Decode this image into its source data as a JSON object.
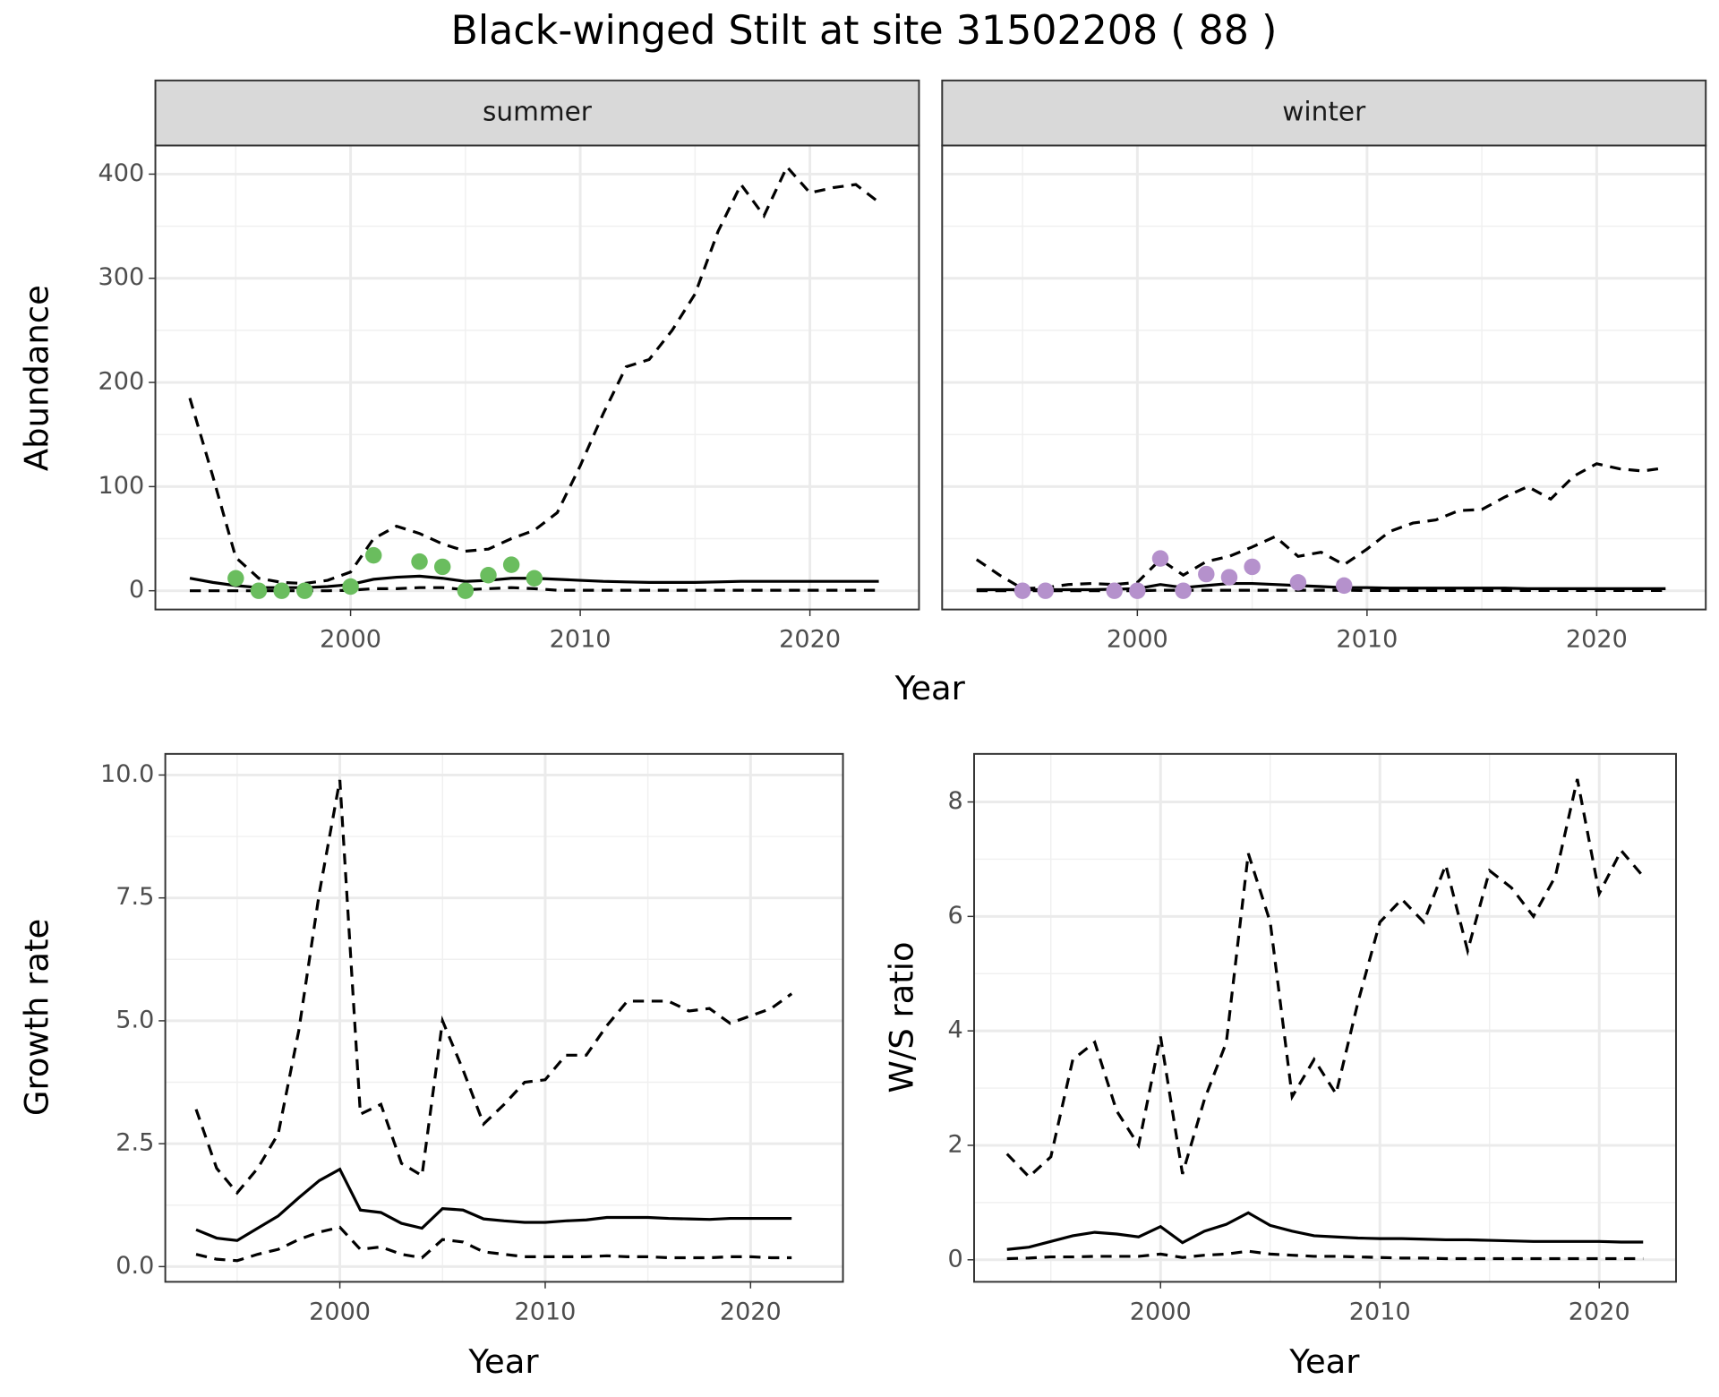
{
  "title": "Black-winged Stilt at site 31502208 ( 88 )",
  "chart_data": [
    {
      "type": "line",
      "title": "summer",
      "xlabel": "Year",
      "ylabel": "Abundance",
      "grid": true,
      "x": [
        1993,
        1994,
        1995,
        1996,
        1997,
        1998,
        1999,
        2000,
        2001,
        2002,
        2003,
        2004,
        2005,
        2006,
        2007,
        2008,
        2009,
        2010,
        2011,
        2012,
        2013,
        2014,
        2015,
        2016,
        2017,
        2018,
        2019,
        2020,
        2021,
        2022,
        2023
      ],
      "xlim": [
        1991.5,
        2024.75
      ],
      "xticks": [
        2000,
        2010,
        2020
      ],
      "xminor_ticks": [
        1995,
        2005,
        2015
      ],
      "ylim": [
        -18,
        427.5
      ],
      "yticks": [
        0,
        100,
        200,
        300,
        400
      ],
      "yminor_ticks": [
        50,
        150,
        250,
        350
      ],
      "series": [
        {
          "style": "dashed",
          "color": "#000000",
          "values": [
            185,
            110,
            32,
            12,
            8,
            7,
            10,
            18,
            50,
            62,
            55,
            45,
            38,
            40,
            50,
            58,
            75,
            120,
            170,
            215,
            222,
            250,
            285,
            345,
            390,
            360,
            407,
            382,
            387,
            390,
            373
          ]
        },
        {
          "style": "solid",
          "color": "#000000",
          "values": [
            12,
            8,
            5,
            3,
            3,
            3,
            4,
            6,
            11,
            13,
            14,
            12,
            9,
            10,
            12,
            12,
            11,
            10,
            9,
            8.5,
            8,
            8,
            8,
            8.5,
            9,
            9,
            9,
            9,
            9,
            9,
            9
          ]
        },
        {
          "style": "dashed",
          "color": "#000000",
          "values": [
            0,
            0,
            0,
            0,
            0,
            0,
            0,
            0.5,
            2,
            2,
            3,
            3,
            1,
            2,
            3,
            2,
            0.5,
            0.5,
            0.5,
            0.5,
            0.5,
            0.5,
            0.5,
            0.5,
            0.5,
            0.5,
            0.5,
            0.5,
            0.5,
            0.5,
            0.5
          ]
        },
        {
          "type": "scatter",
          "color": "#6abd5e",
          "values": [
            null,
            null,
            12,
            0,
            0,
            0,
            null,
            4,
            34,
            null,
            28,
            23,
            0,
            15,
            25,
            12,
            null,
            null,
            null,
            null,
            null,
            null,
            null,
            null,
            null,
            null,
            null,
            null,
            null,
            null,
            null
          ]
        }
      ]
    },
    {
      "type": "line",
      "title": "winter",
      "grid": true,
      "show_ytick_labels": false,
      "x": [
        1993,
        1994,
        1995,
        1996,
        1997,
        1998,
        1999,
        2000,
        2001,
        2002,
        2003,
        2004,
        2005,
        2006,
        2007,
        2008,
        2009,
        2010,
        2011,
        2012,
        2013,
        2014,
        2015,
        2016,
        2017,
        2018,
        2019,
        2020,
        2021,
        2022,
        2023
      ],
      "xlim": [
        1991.5,
        2024.75
      ],
      "xticks": [
        2000,
        2010,
        2020
      ],
      "xminor_ticks": [
        1995,
        2005,
        2015
      ],
      "ylim": [
        -18,
        427.5
      ],
      "yticks": [
        0,
        100,
        200,
        300,
        400
      ],
      "yminor_ticks": [
        50,
        150,
        250,
        350
      ],
      "series": [
        {
          "style": "dashed",
          "color": "#000000",
          "values": [
            30,
            15,
            2,
            3,
            6,
            7,
            6,
            8,
            30,
            15,
            28,
            33,
            42,
            52,
            33,
            37,
            25,
            40,
            57,
            65,
            68,
            77,
            78,
            90,
            100,
            88,
            110,
            122,
            117,
            115,
            118
          ]
        },
        {
          "style": "solid",
          "color": "#000000",
          "values": [
            1,
            1,
            1,
            1,
            1,
            1,
            1.5,
            2,
            6,
            3,
            5,
            7,
            7,
            6,
            5,
            4,
            3,
            3,
            2.5,
            2.5,
            2.5,
            2.5,
            2.5,
            2.5,
            2,
            2,
            2,
            2,
            2,
            2,
            2
          ]
        },
        {
          "style": "dashed",
          "color": "#000000",
          "values": [
            0,
            0,
            0,
            0,
            0,
            0,
            0,
            0,
            0.5,
            0.5,
            0.5,
            0.5,
            0.5,
            0.5,
            0.5,
            0.5,
            0.5,
            0.2,
            0.2,
            0.2,
            0.2,
            0.2,
            0.2,
            0.2,
            0.2,
            0.2,
            0.2,
            0.2,
            0.2,
            0.2,
            0.2
          ]
        },
        {
          "type": "scatter",
          "color": "#b591cc",
          "values": [
            null,
            null,
            0,
            0,
            null,
            null,
            0,
            0,
            31,
            0,
            16,
            13,
            23,
            null,
            8,
            null,
            5,
            null,
            null,
            null,
            null,
            null,
            null,
            null,
            null,
            null,
            null,
            null,
            null,
            null,
            null
          ]
        }
      ]
    },
    {
      "type": "line",
      "xlabel": "Year",
      "ylabel": "Growth rate",
      "grid": true,
      "x": [
        1993,
        1994,
        1995,
        1996,
        1997,
        1998,
        1999,
        2000,
        2001,
        2002,
        2003,
        2004,
        2005,
        2006,
        2007,
        2008,
        2009,
        2010,
        2011,
        2012,
        2013,
        2014,
        2015,
        2016,
        2017,
        2018,
        2019,
        2020,
        2021,
        2022
      ],
      "xlim": [
        1991.5,
        2024.5
      ],
      "xticks": [
        2000,
        2010,
        2020
      ],
      "xminor_ticks": [
        1995,
        2005,
        2015
      ],
      "ylim": [
        -0.31,
        10.43
      ],
      "yticks": [
        {
          "value": 0,
          "label": "0.0"
        },
        {
          "value": 2.5,
          "label": "2.5"
        },
        {
          "value": 5,
          "label": "5.0"
        },
        {
          "value": 7.5,
          "label": "7.5"
        },
        {
          "value": 10,
          "label": "10.0"
        }
      ],
      "yminor_ticks": [
        1.25,
        3.75,
        6.25,
        8.75
      ],
      "series": [
        {
          "style": "dashed",
          "color": "#000000",
          "values": [
            3.2,
            2.0,
            1.5,
            2.0,
            2.7,
            4.8,
            7.6,
            9.9,
            3.1,
            3.3,
            2.1,
            1.85,
            5.0,
            4.0,
            2.9,
            3.3,
            3.75,
            3.8,
            4.3,
            4.3,
            4.9,
            5.4,
            5.4,
            5.4,
            5.2,
            5.25,
            4.95,
            5.1,
            5.25,
            5.55
          ]
        },
        {
          "style": "solid",
          "color": "#000000",
          "values": [
            0.75,
            0.58,
            0.53,
            0.78,
            1.03,
            1.4,
            1.75,
            1.98,
            1.15,
            1.1,
            0.88,
            0.78,
            1.18,
            1.15,
            0.97,
            0.93,
            0.9,
            0.9,
            0.93,
            0.95,
            1.0,
            1.0,
            1.0,
            0.98,
            0.97,
            0.96,
            0.98,
            0.98,
            0.98,
            0.98
          ]
        },
        {
          "style": "dashed",
          "color": "#000000",
          "values": [
            0.25,
            0.15,
            0.12,
            0.25,
            0.35,
            0.55,
            0.7,
            0.8,
            0.35,
            0.4,
            0.25,
            0.18,
            0.55,
            0.5,
            0.3,
            0.25,
            0.2,
            0.2,
            0.2,
            0.2,
            0.22,
            0.2,
            0.2,
            0.18,
            0.18,
            0.18,
            0.2,
            0.2,
            0.18,
            0.18
          ]
        }
      ]
    },
    {
      "type": "line",
      "xlabel": "Year",
      "ylabel": "W/S ratio",
      "grid": true,
      "x": [
        1993,
        1994,
        1995,
        1996,
        1997,
        1998,
        1999,
        2000,
        2001,
        2002,
        2003,
        2004,
        2005,
        2006,
        2007,
        2008,
        2009,
        2010,
        2011,
        2012,
        2013,
        2014,
        2015,
        2016,
        2017,
        2018,
        2019,
        2020,
        2021,
        2022
      ],
      "xlim": [
        1991.5,
        2023.5
      ],
      "xticks": [
        2000,
        2010,
        2020
      ],
      "xminor_ticks": [
        1995,
        2005,
        2015
      ],
      "ylim": [
        -0.385,
        8.84
      ],
      "yticks": [
        0,
        2,
        4,
        6,
        8
      ],
      "yminor_ticks": [
        1,
        3,
        5,
        7
      ],
      "series": [
        {
          "style": "dashed",
          "color": "#000000",
          "values": [
            1.85,
            1.45,
            1.8,
            3.5,
            3.8,
            2.6,
            2.0,
            3.9,
            1.5,
            2.8,
            3.8,
            7.1,
            5.9,
            2.85,
            3.5,
            2.9,
            4.5,
            5.9,
            6.3,
            5.9,
            6.9,
            5.4,
            6.8,
            6.5,
            6.0,
            6.7,
            8.4,
            6.4,
            7.15,
            6.7
          ]
        },
        {
          "style": "solid",
          "color": "#000000",
          "values": [
            0.18,
            0.22,
            0.32,
            0.42,
            0.48,
            0.45,
            0.4,
            0.58,
            0.3,
            0.5,
            0.62,
            0.82,
            0.6,
            0.5,
            0.42,
            0.4,
            0.38,
            0.37,
            0.37,
            0.36,
            0.35,
            0.35,
            0.34,
            0.33,
            0.32,
            0.32,
            0.32,
            0.32,
            0.31,
            0.31
          ]
        },
        {
          "style": "dashed",
          "color": "#000000",
          "values": [
            0.02,
            0.03,
            0.05,
            0.05,
            0.06,
            0.06,
            0.06,
            0.1,
            0.04,
            0.08,
            0.1,
            0.15,
            0.1,
            0.08,
            0.06,
            0.06,
            0.05,
            0.04,
            0.03,
            0.03,
            0.02,
            0.02,
            0.02,
            0.02,
            0.02,
            0.02,
            0.02,
            0.02,
            0.02,
            0.02
          ]
        }
      ]
    }
  ]
}
